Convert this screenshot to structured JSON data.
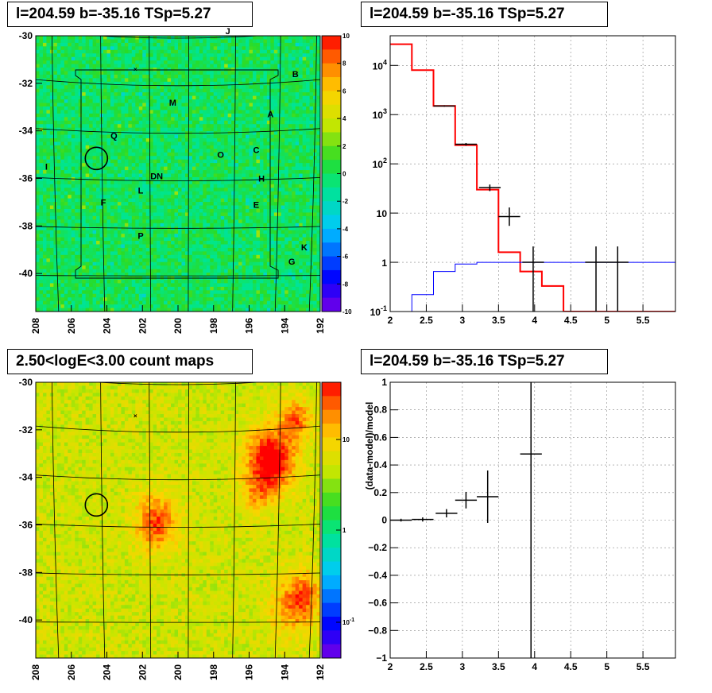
{
  "panels": {
    "top_left_title": "l=204.59 b=-35.16 TSp=5.27",
    "top_right_title": "l=204.59 b=-35.16 TSp=5.27",
    "bottom_left_title": "2.50<logE<3.00 count maps",
    "bottom_right_title": "l=204.59 b=-35.16 TSp=5.27"
  },
  "chart_data": [
    {
      "type": "heatmap",
      "title": "l=204.59 b=-35.16 TSp=5.27",
      "x_ticks": [
        "208",
        "206",
        "204",
        "202",
        "200",
        "198",
        "196",
        "194",
        "192"
      ],
      "y_ticks": [
        "-30",
        "-32",
        "-34",
        "-36",
        "-38",
        "-40"
      ],
      "xlim": [
        208,
        192
      ],
      "ylim": [
        -41.6,
        -30
      ],
      "colorbar": {
        "range": [
          -10,
          10
        ],
        "ticks": [
          "10",
          "8",
          "6",
          "4",
          "2",
          "0",
          "-2",
          "-4",
          "-6",
          "-8",
          "-10"
        ]
      },
      "sources": [
        {
          "name": "J",
          "l": 197.2,
          "b": -29.8
        },
        {
          "name": "B",
          "l": 193.4,
          "b": -31.6
        },
        {
          "name": "M",
          "l": 200.3,
          "b": -32.8
        },
        {
          "name": "A",
          "l": 194.8,
          "b": -33.3
        },
        {
          "name": "Q",
          "l": 203.6,
          "b": -34.2
        },
        {
          "name": "O",
          "l": 197.6,
          "b": -35.0
        },
        {
          "name": "C",
          "l": 195.6,
          "b": -34.8
        },
        {
          "name": "I",
          "l": 207.4,
          "b": -35.5
        },
        {
          "name": "DN",
          "l": 201.2,
          "b": -35.9
        },
        {
          "name": "H",
          "l": 195.3,
          "b": -36.0
        },
        {
          "name": "L",
          "l": 202.1,
          "b": -36.5
        },
        {
          "name": "F",
          "l": 204.2,
          "b": -37.0
        },
        {
          "name": "E",
          "l": 195.6,
          "b": -37.1
        },
        {
          "name": "P",
          "l": 202.1,
          "b": -38.4
        },
        {
          "name": "K",
          "l": 192.9,
          "b": -38.9
        },
        {
          "name": "G",
          "l": 193.6,
          "b": -39.5
        }
      ],
      "circle_center": {
        "l": 204.59,
        "b": -35.16
      }
    },
    {
      "type": "line",
      "title": "l=204.59 b=-35.16 TSp=5.27",
      "x_ticks": [
        "2",
        "2.5",
        "3",
        "3.5",
        "4",
        "4.5",
        "5",
        "5.5"
      ],
      "y_ticks": [
        "10^-1",
        "1",
        "10",
        "10^2",
        "10^3",
        "10^4"
      ],
      "xlim": [
        2,
        5.95
      ],
      "ylim": [
        0.1,
        40000
      ],
      "y_scale": "log",
      "grid": true,
      "series": [
        {
          "color": "#ff0000",
          "bins": [
            [
              2.0,
              2.3,
              27000
            ],
            [
              2.3,
              2.6,
              8000
            ],
            [
              2.6,
              2.9,
              1500
            ],
            [
              2.9,
              3.2,
              240
            ],
            [
              3.2,
              3.5,
              30
            ],
            [
              3.5,
              3.8,
              1.6
            ],
            [
              3.8,
              4.1,
              0.65
            ],
            [
              4.1,
              4.4,
              0.33
            ],
            [
              4.4,
              4.7,
              0.1
            ],
            [
              4.7,
              5.95,
              0.1
            ]
          ]
        },
        {
          "color": "#0000ff",
          "bins": [
            [
              2.3,
              2.6,
              0.22
            ],
            [
              2.6,
              2.9,
              0.65
            ],
            [
              2.9,
              3.2,
              0.92
            ],
            [
              3.2,
              3.5,
              1.0
            ],
            [
              3.5,
              5.95,
              1.0
            ]
          ]
        }
      ],
      "data_points": [
        {
          "x": 2.75,
          "y": 1500,
          "x_err": 0.15,
          "y_err": [
            1450,
            1550
          ]
        },
        {
          "x": 3.05,
          "y": 250,
          "x_err": 0.15,
          "y_err": [
            235,
            265
          ]
        },
        {
          "x": 3.38,
          "y": 33,
          "x_err": 0.15,
          "y_err": [
            28,
            38
          ]
        },
        {
          "x": 3.65,
          "y": 8.5,
          "x_err": 0.15,
          "y_err": [
            5.5,
            13
          ]
        },
        {
          "x": 3.98,
          "y": 1.0,
          "x_err": 0.15,
          "y_err": [
            0.1,
            2.1
          ]
        },
        {
          "x": 4.85,
          "y": 1.0,
          "x_err": 0.15,
          "y_err": [
            0.1,
            2.1
          ]
        },
        {
          "x": 5.15,
          "y": 1.0,
          "x_err": 0.15,
          "y_err": [
            0.1,
            2.1
          ]
        }
      ]
    },
    {
      "type": "heatmap",
      "title": "2.50<logE<3.00 count maps",
      "x_ticks": [
        "208",
        "206",
        "204",
        "202",
        "200",
        "198",
        "196",
        "194",
        "192"
      ],
      "y_ticks": [
        "-30",
        "-32",
        "-34",
        "-36",
        "-38",
        "-40"
      ],
      "xlim": [
        208,
        192
      ],
      "ylim": [
        -41.6,
        -30
      ],
      "colorbar": {
        "scale": "log",
        "ticks": [
          "10",
          "1",
          "10^-1"
        ]
      },
      "circle_center": {
        "l": 204.59,
        "b": -35.16
      }
    },
    {
      "type": "scatter",
      "title": "l=204.59 b=-35.16 TSp=5.27",
      "ylabel": "(data-model)/model",
      "x_ticks": [
        "2",
        "2.5",
        "3",
        "3.5",
        "4",
        "4.5",
        "5",
        "5.5"
      ],
      "y_ticks": [
        "1",
        "0.8",
        "0.6",
        "0.4",
        "0.2",
        "0",
        "-0.2",
        "-0.4",
        "-0.6",
        "-0.8",
        "-1"
      ],
      "xlim": [
        2,
        5.95
      ],
      "ylim": [
        -1,
        1
      ],
      "grid": true,
      "data_points": [
        {
          "x": 2.15,
          "y": 0.0,
          "x_err": 0.15,
          "y_err": 0.01
        },
        {
          "x": 2.45,
          "y": 0.005,
          "x_err": 0.15,
          "y_err": 0.015
        },
        {
          "x": 2.78,
          "y": 0.05,
          "x_err": 0.15,
          "y_err": 0.03
        },
        {
          "x": 3.05,
          "y": 0.145,
          "x_err": 0.15,
          "y_err": 0.06
        },
        {
          "x": 3.35,
          "y": 0.17,
          "x_err": 0.15,
          "y_err": 0.19
        },
        {
          "x": 3.95,
          "y": 0.48,
          "x_err": 0.15,
          "y_err": 1.6
        }
      ]
    }
  ]
}
